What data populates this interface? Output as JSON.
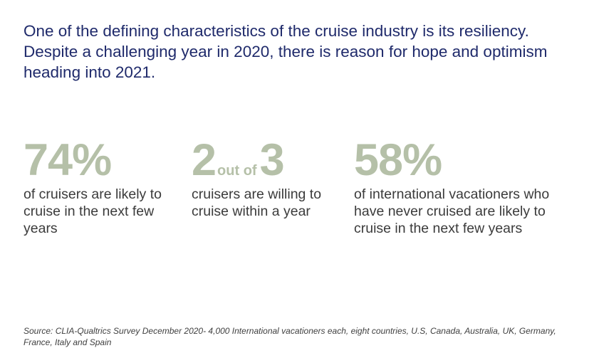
{
  "headline": "One of the defining characteristics of the cruise industry is its resiliency. Despite a challenging year in 2020, there is reason for hope and optimism heading into 2021.",
  "stats": [
    {
      "value": "74%",
      "description": "of cruisers are likely to cruise in the next few years"
    },
    {
      "value_numerator": "2",
      "value_connector": "out of",
      "value_denominator": "3",
      "description": "cruisers are willing to cruise within a year"
    },
    {
      "value": "58%",
      "description": "of international vacationers who have never cruised are likely to cruise in the next few years"
    }
  ],
  "source": "Source: CLIA-Qualtrics Survey December 2020- 4,000 International vacationers each, eight countries, U.S, Canada, Australia, UK, Germany, France, Italy and Spain",
  "colors": {
    "headline": "#1f2a6b",
    "stat_value": "#b5c0a8",
    "body_text": "#3b3b3b"
  }
}
